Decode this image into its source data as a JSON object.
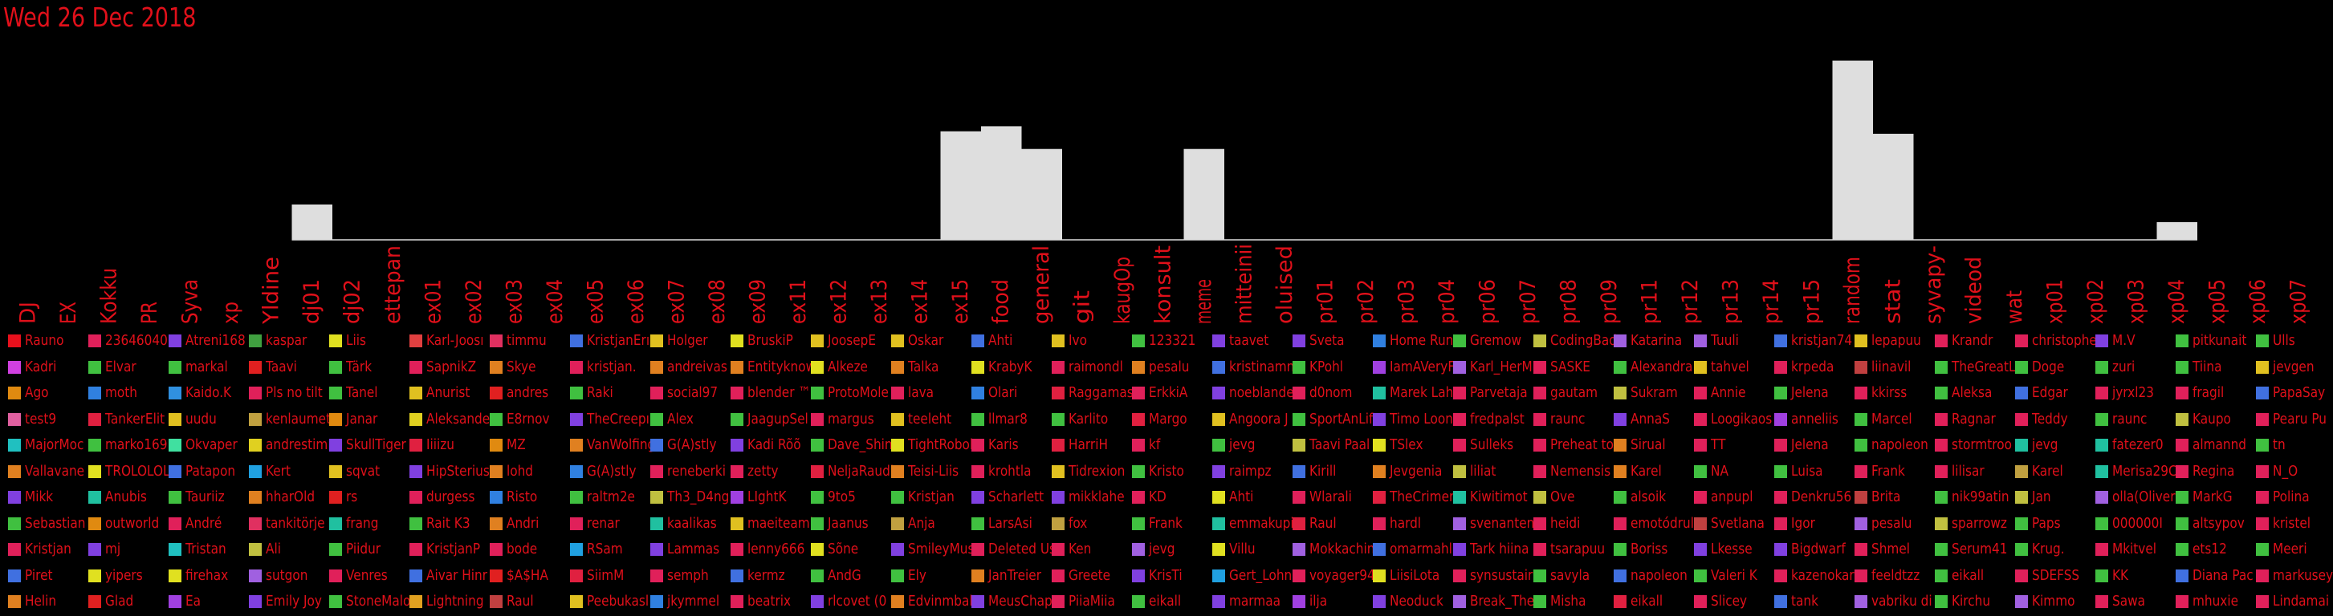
{
  "date_label": "Wed 26 Dec 2018",
  "chart_data": {
    "type": "bar",
    "categories": [
      "DJ",
      "EX",
      "Kokku",
      "PR",
      "Syva",
      "xp",
      "Yldine",
      "dj01",
      "dj02",
      "ettepan",
      "ex01",
      "ex02",
      "ex03",
      "ex04",
      "ex05",
      "ex06",
      "ex07",
      "ex08",
      "ex09",
      "ex11",
      "ex12",
      "ex13",
      "ex14",
      "ex15",
      "food",
      "general",
      "git",
      "kaugOp",
      "konsult",
      "meme",
      "mitteinii",
      "oluised",
      "pr01",
      "pr02",
      "pr03",
      "pr04",
      "pr06",
      "pr07",
      "pr08",
      "pr09",
      "pr11",
      "pr12",
      "pr13",
      "pr14",
      "pr15",
      "random",
      "stat",
      "syvapy-",
      "videod",
      "wat",
      "xp01",
      "xp02",
      "xp03",
      "xp04",
      "xp05",
      "xp06",
      "xp07"
    ],
    "values": [
      0,
      0,
      0,
      0,
      0,
      0,
      0,
      14,
      0,
      0,
      0,
      0,
      0,
      0,
      0,
      0,
      0,
      0,
      0,
      0,
      0,
      0,
      0,
      43,
      45,
      36,
      0,
      0,
      0,
      36,
      0,
      0,
      0,
      0,
      0,
      0,
      0,
      0,
      0,
      0,
      0,
      0,
      0,
      0,
      0,
      71,
      42,
      0,
      0,
      0,
      0,
      0,
      0,
      7,
      0,
      0,
      0
    ],
    "ylim": [
      0,
      75
    ],
    "bar_color": "#dedede",
    "label_color": "#e0101a",
    "grid": false
  },
  "legend_columns": [
    [
      "Rauno",
      "Kadri",
      "Ago",
      "test9",
      "MajorMoc",
      "Vallavane",
      "Mikk",
      "Sebastian",
      "Kristjan",
      "Piret",
      "Helin"
    ],
    [
      "23646040",
      "Elvar",
      "moth",
      "TankerElit",
      "marko169",
      "TROLOLOL",
      "Anubis",
      "outworld",
      "mj",
      "yipers",
      "Glad"
    ],
    [
      "Atreni168",
      "markal",
      "Kaido.K",
      "uudu",
      "Okvaper",
      "Patapon",
      "Tauriiz",
      "André",
      "Tristan",
      "firehax",
      "Ea"
    ],
    [
      "kaspar",
      "Taavi",
      "Pls no tilt",
      "kenlaumet",
      "andrestim",
      "Kert",
      "hharOld",
      "tankitörje",
      "Ali",
      "sutgon",
      "Emily Joy"
    ],
    [
      "Liis",
      "Tärk",
      "Tanel",
      "Janar",
      "SkullTiger",
      "sqvat",
      "rs",
      "frang",
      "Piidur",
      "Venres",
      "StoneMalo"
    ],
    [
      "Karl-Joosı",
      "SapnikZ",
      "Anurist",
      "Aleksande",
      "Iiiizu",
      "HipSterius",
      "durgess",
      "Rait K3",
      "KristjanP",
      "Aivar Hinr",
      "Lightning"
    ],
    [
      "timmu",
      "Skye",
      "andres",
      "E8rnov",
      "MZ",
      "lohd",
      "Risto",
      "Andri",
      "bode",
      "$A$HA",
      "Raul"
    ],
    [
      "KristjanErı",
      "kristjan.",
      "Raki",
      "TheCreepı",
      "VanWolfing",
      "G(A)stly",
      "raltm2e",
      "renar",
      "RSam",
      "SiimM",
      "Peebukasl"
    ],
    [
      "Holger",
      "andreivas",
      "social97",
      "Alex",
      "G(A)stly",
      "reneberki",
      "Th3_D4ng",
      "kaalikas",
      "Lammas",
      "semph",
      "jkymmel"
    ],
    [
      "BruskiP",
      "Entityknow",
      "blender ™",
      "JaagupSel",
      "Kadi Rõõ",
      "zetty",
      "LIghtK",
      "maeiteami",
      "lenny666",
      "kermz",
      "beatrix"
    ],
    [
      "JoosepE",
      "Alkeze",
      "ProtoMole",
      "margus",
      "Dave_Shin",
      "NeljaRaudi",
      "9to5",
      "Jaanus",
      "Sõne",
      "AndG",
      "rlcovet (0"
    ],
    [
      "Oskar",
      "Talka",
      "lava",
      "teeleht",
      "TightRobol",
      "Teisi-Liis",
      "Kristjan",
      "Anja",
      "SmileyMus",
      "Ely",
      "Edvinmbal"
    ],
    [
      "Ahti",
      "KrabyK",
      "Olari",
      "llmar8",
      "Karis",
      "krohtla",
      "Scharlett",
      "LarsAsi",
      "Deleted Us",
      "JanTreier",
      "MeusChap"
    ],
    [
      "Ivo",
      "raimondl",
      "Raggamas",
      "Karlito",
      "HarriH",
      "Tidrexion",
      "mikklahe",
      "fox",
      "Ken",
      "Greete",
      "PiiaMiia"
    ],
    [
      "123321",
      "pesalu",
      "ErkkiA",
      "Margo",
      "kf",
      "Kristo",
      "KD",
      "Frank",
      "jevg",
      "KrisTi",
      "eikall"
    ],
    [
      "taavet",
      "kristinamn",
      "noeblande",
      "Angoora J",
      "jevg",
      "raimpz",
      "Ahti",
      "emmakupi",
      "Villu",
      "Gert_Lohn",
      "marmaa"
    ],
    [
      "Sveta",
      "KPohl",
      "d0nom",
      "SportAnLif",
      "Taavi Paal",
      "Kirill",
      "Wlarali",
      "Raul",
      "Mokkachin",
      "voyager94",
      "ilja"
    ],
    [
      "Home Run",
      "IamAVeryF",
      "Marek Lah",
      "Timo Loon",
      "TSlex",
      "Jevgenia",
      "TheCrimer",
      "hardl",
      "omarmahl",
      "LiisiLota",
      "Neoduck"
    ],
    [
      "Gremow",
      "Karl_HerM",
      "Parvetaja",
      "fredpalst",
      "Sulleks",
      "liliat",
      "Kiwitimot",
      "svenanten",
      "Tark hiina",
      "synsustair",
      "Break_The"
    ],
    [
      "CodingBad",
      "SASKE",
      "gautam",
      "raunc",
      "Preheat to",
      "Nemensis",
      "Ove",
      "heidi",
      "tsarapuu",
      "savyla",
      "Misha"
    ],
    [
      "Katarina",
      "Alexandra",
      "Sukram",
      "AnnaS",
      "Sirual",
      "Karel",
      "alsoik",
      "emotódrul",
      "Boriss",
      "napoleon",
      "eikall"
    ],
    [
      "Tuuli",
      "tahvel",
      "Annie",
      "Loogikaos",
      "TT",
      "NA",
      "anpupl",
      "Svetlana",
      "Lkesse",
      "Valeri K",
      "Slicey"
    ],
    [
      "kristjan74",
      "krpeda",
      "Jelena",
      "anneliis",
      "Jelena",
      "Luisa",
      "Denkru56",
      "Igor",
      "Bigdwarf",
      "kazenokar",
      "tank"
    ],
    [
      "lepapuu",
      "liinavil",
      "kkirss",
      "Marcel",
      "napoleon",
      "Frank",
      "Brita",
      "pesalu",
      "Shmel",
      "feeldtzz",
      "vabriku di"
    ],
    [
      "Krandr",
      "TheGreatL",
      "Aleksa",
      "Ragnar",
      "stormtroo",
      "lilisar",
      "nik99atin",
      "sparrowz",
      "Serum41",
      "eikall",
      "Kirchu"
    ],
    [
      "christophe",
      "Doge",
      "Edgar",
      "Teddy",
      "jevg",
      "Karel",
      "Jan",
      "Paps",
      "Krug.",
      "SDEFSS",
      "Kimmo"
    ],
    [
      "M.V",
      "zuri",
      "jyrxl23",
      "raunc",
      "fatezer0",
      "Merisa29C",
      "olla(Oliver",
      "000000I",
      "Mkitvel",
      "KK",
      "Sawa"
    ],
    [
      "pitkunait",
      "Tiina",
      "fragil",
      "Kaupo",
      "almannd",
      "Regina",
      "MarkG",
      "altsypov",
      "ets12",
      "Diana Pac",
      "mhuxie"
    ],
    [
      "Ulls",
      "jevgen",
      "PapaSay",
      "Pearu Pu",
      "tn",
      "N_O",
      "Polina",
      "kristel",
      "Meeri",
      "markusey",
      "Lindamai"
    ]
  ],
  "legend_colors": [
    [
      "#e8101c",
      "#d040e0",
      "#e08a10",
      "#e060a0",
      "#20c0c0",
      "#e08020",
      "#8040e0",
      "#40c040",
      "#e0205a",
      "#4070e0",
      "#e08020"
    ],
    [
      "#e0205a",
      "#40c040",
      "#3080e0",
      "#e02040",
      "#40c040",
      "#e0e020",
      "#20c0a0",
      "#e08a10",
      "#8040e0",
      "#e0e020",
      "#e02020"
    ],
    [
      "#8040e0",
      "#40c040",
      "#3090e0",
      "#e0c020",
      "#40e0a0",
      "#4070e0",
      "#40c040",
      "#e0205a",
      "#20c0c0",
      "#e0e020",
      "#a040e0"
    ],
    [
      "#40a040",
      "#e02020",
      "#e0205a",
      "#c0a040",
      "#e0d020",
      "#20a0e0",
      "#e08020",
      "#e03060",
      "#c0c040",
      "#a060e0",
      "#8040e0"
    ],
    [
      "#e0e020",
      "#40c040",
      "#40c040",
      "#e08a10",
      "#8040e0",
      "#e0c020",
      "#e02020",
      "#20c0a0",
      "#40c040",
      "#e0205a",
      "#40c040"
    ],
    [
      "#e04040",
      "#e0205a",
      "#e0c020",
      "#e0d020",
      "#e02040",
      "#8040e0",
      "#e0205a",
      "#40c040",
      "#e0205a",
      "#4070e0",
      "#e0a020"
    ],
    [
      "#e03060",
      "#e08020",
      "#e02020",
      "#40c040",
      "#e08a10",
      "#e08020",
      "#3080e0",
      "#e08020",
      "#e0205a",
      "#e02020",
      "#c04040"
    ],
    [
      "#4070e0",
      "#e0205a",
      "#40c040",
      "#8040e0",
      "#e08020",
      "#3080e0",
      "#40c040",
      "#e0205a",
      "#20a0e0",
      "#e02040",
      "#e0c020"
    ],
    [
      "#e0c020",
      "#e08020",
      "#e0205a",
      "#40c040",
      "#4070e0",
      "#e0205a",
      "#c0c040",
      "#20c0a0",
      "#8040e0",
      "#e0205a",
      "#3080e0"
    ],
    [
      "#e0e020",
      "#e08020",
      "#e0205a",
      "#40c040",
      "#8040e0",
      "#e0205a",
      "#a040e0",
      "#e0c020",
      "#e0205a",
      "#4070e0",
      "#e0205a"
    ],
    [
      "#e0c020",
      "#e0e020",
      "#40c040",
      "#e0205a",
      "#40c040",
      "#e02040",
      "#40c040",
      "#40c040",
      "#e0e020",
      "#40c040",
      "#8040e0"
    ],
    [
      "#e0c020",
      "#e08020",
      "#e0205a",
      "#e0c020",
      "#e0e020",
      "#e08020",
      "#40c040",
      "#c0a040",
      "#8040e0",
      "#40c040",
      "#e08020"
    ],
    [
      "#4070e0",
      "#e0e020",
      "#3080e0",
      "#40c040",
      "#e0205a",
      "#e0205a",
      "#8040e0",
      "#40c040",
      "#e0205a",
      "#e08020",
      "#8040e0"
    ],
    [
      "#e0c020",
      "#e0205a",
      "#e02040",
      "#40c040",
      "#e02040",
      "#e0c020",
      "#8040e0",
      "#c0a040",
      "#e0205a",
      "#e0205a",
      "#e0205a"
    ],
    [
      "#40c040",
      "#e08020",
      "#e0205a",
      "#e02040",
      "#e0205a",
      "#40c040",
      "#e0205a",
      "#40c040",
      "#a060e0",
      "#8040e0",
      "#40c040"
    ],
    [
      "#8040e0",
      "#4070e0",
      "#8040e0",
      "#e0c020",
      "#40c040",
      "#8040e0",
      "#e0e020",
      "#20c0a0",
      "#e0e020",
      "#20a0e0",
      "#8040e0"
    ],
    [
      "#8040e0",
      "#40c040",
      "#e0205a",
      "#40c040",
      "#c0c040",
      "#4070e0",
      "#e0205a",
      "#e02040",
      "#a060e0",
      "#e0205a",
      "#a040e0"
    ],
    [
      "#3080e0",
      "#a040e0",
      "#20c0a0",
      "#8040e0",
      "#e0e020",
      "#e08020",
      "#e02040",
      "#e0205a",
      "#4070e0",
      "#e0e020",
      "#8040e0"
    ],
    [
      "#40c040",
      "#a060e0",
      "#e0205a",
      "#e0205a",
      "#e0205a",
      "#c0c040",
      "#20c0a0",
      "#a060e0",
      "#8040e0",
      "#e0205a",
      "#a060e0"
    ],
    [
      "#c0c040",
      "#e0205a",
      "#e0205a",
      "#e0205a",
      "#e0205a",
      "#e0205a",
      "#c0c040",
      "#e0205a",
      "#e0205a",
      "#40c040",
      "#40c040"
    ],
    [
      "#a060e0",
      "#40c040",
      "#c0c040",
      "#8040e0",
      "#e08020",
      "#e08020",
      "#40c040",
      "#e0205a",
      "#40c040",
      "#4070e0",
      "#e02040"
    ],
    [
      "#a060e0",
      "#e0c020",
      "#e0205a",
      "#e0205a",
      "#e0205a",
      "#40c040",
      "#e0205a",
      "#c04040",
      "#8040e0",
      "#40c040",
      "#e0205a"
    ],
    [
      "#4070e0",
      "#e0205a",
      "#40c040",
      "#a040e0",
      "#e0205a",
      "#40c040",
      "#e0205a",
      "#e0205a",
      "#8040e0",
      "#e0205a",
      "#4070e0"
    ],
    [
      "#e0c020",
      "#c04040",
      "#e0205a",
      "#40c040",
      "#40c040",
      "#e0205a",
      "#c04040",
      "#a060e0",
      "#e0205a",
      "#e0205a",
      "#a060e0"
    ],
    [
      "#e0205a",
      "#40c040",
      "#40c040",
      "#e0205a",
      "#e0205a",
      "#e0205a",
      "#40c040",
      "#c0c040",
      "#40c040",
      "#40c040",
      "#40c040"
    ],
    [
      "#e0205a",
      "#40c040",
      "#4070e0",
      "#e0205a",
      "#20c0a0",
      "#c0a040",
      "#c0c040",
      "#40c040",
      "#40c040",
      "#e0205a",
      "#a060e0"
    ],
    [
      "#8040e0",
      "#40c040",
      "#e0205a",
      "#40c040",
      "#20c0a0",
      "#20c0a0",
      "#a060e0",
      "#40c040",
      "#e0205a",
      "#40c040",
      "#e0205a"
    ],
    [
      "#40c040",
      "#40c040",
      "#e0205a",
      "#c0c040",
      "#e0205a",
      "#e0205a",
      "#40c040",
      "#40c040",
      "#40c040",
      "#4070e0",
      "#e0205a"
    ],
    [
      "#40c040",
      "#e0c020",
      "#4070e0",
      "#e0205a",
      "#40c040",
      "#e0205a",
      "#e0205a",
      "#e0205a",
      "#40c040",
      "#e0205a",
      "#e0205a"
    ]
  ]
}
